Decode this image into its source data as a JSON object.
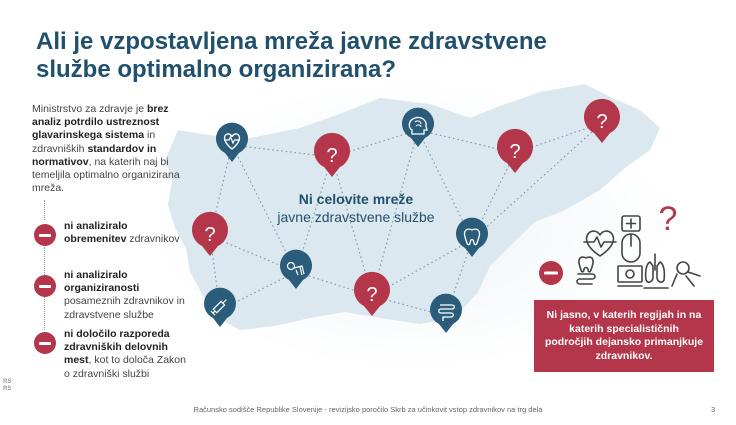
{
  "title": "Ali je vzpostavljena mreža javne zdravstvene službe optimalno organizirana?",
  "intro": {
    "t1": "Ministrstvo za zdravje je ",
    "b1": "brez analiz potrdilo ustreznost glavarinskega sistema",
    "t2": " in zdravniških ",
    "b2": "standardov in normativov",
    "t3": ", na katerih naj bi temeljila optimalno organizirana mreža."
  },
  "points": [
    {
      "bold": "ni analiziralo obremenitev",
      "rest": " zdravnikov"
    },
    {
      "bold": "ni analiziralo organiziranosti",
      "rest": " posameznih zdravnikov in zdravstvene službe"
    },
    {
      "bold": "ni določilo razporeda zdravniških delovnih mest",
      "rest": ", kot to določa Zakon o zdravniški službi"
    }
  ],
  "center": {
    "line1": "Ni celovite mreže",
    "line2": "javne zdravstvene službe"
  },
  "question_mark": "?",
  "callout": "Ni jasno, v katerih regijah in na katerih specialističnih področjih dejansko primanjkuje zdravnikov.",
  "footer": "Računsko sodišče Republike Slovenije - revizijsko poročilo Skrb za učinkovit vstop zdravnikov na trg dela",
  "page_number": "3",
  "logo": "RS RS",
  "icons": [
    "heart-monitor-icon",
    "brain-icon",
    "tooth-icon",
    "baby-icon",
    "syringe-icon",
    "intestine-icon",
    "medical-equipment-icon"
  ],
  "colors": {
    "title": "#21506c",
    "accent_red": "#b3364a",
    "pin_blue": "#2b5d7a",
    "map_fill": "#dbe8ef"
  }
}
